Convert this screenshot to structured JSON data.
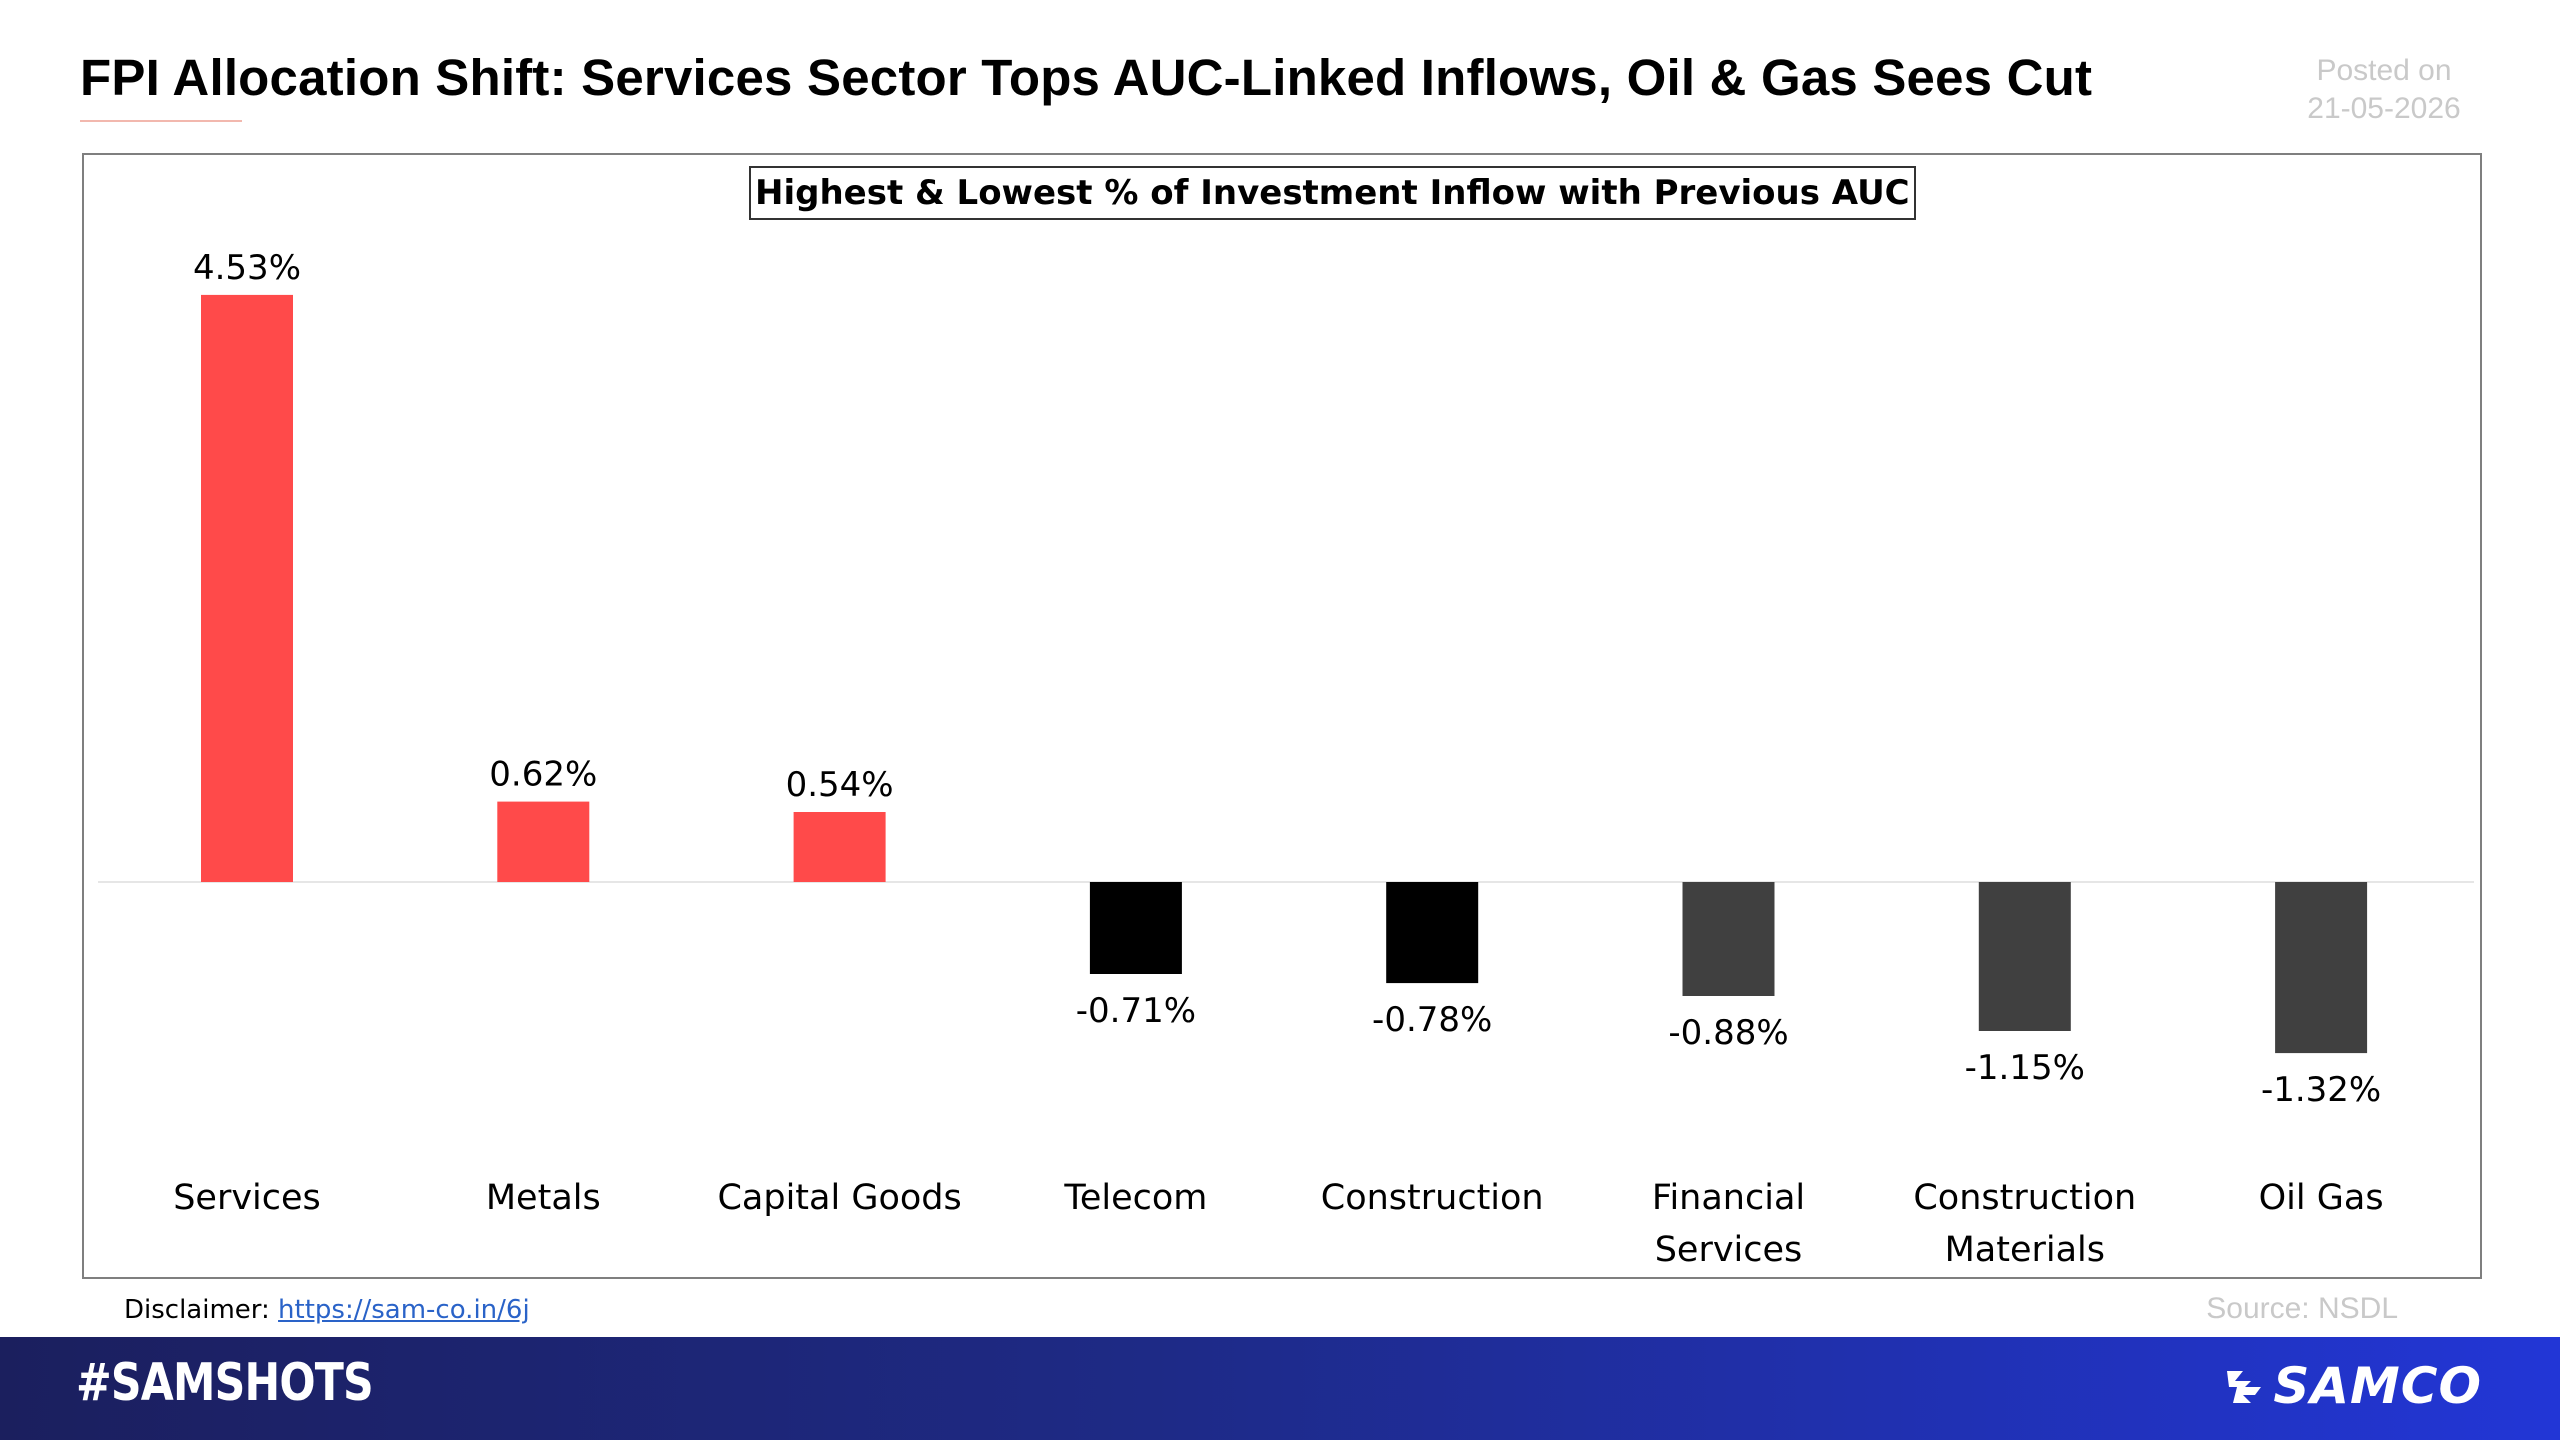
{
  "header": {
    "title": "FPI Allocation Shift: Services Sector Tops AUC-Linked Inflows, Oil & Gas Sees Cut",
    "posted_label": "Posted on",
    "posted_date": "21-05-2026"
  },
  "chart_data": {
    "type": "bar",
    "title": "Highest & Lowest % of Investment Inflow with Previous AUC",
    "categories": [
      "Services",
      "Metals",
      "Capital Goods",
      "Telecom",
      "Construction",
      "Financial Services",
      "Construction Materials",
      "Oil Gas"
    ],
    "category_lines": [
      [
        "Services"
      ],
      [
        "Metals"
      ],
      [
        "Capital Goods"
      ],
      [
        "Telecom"
      ],
      [
        "Construction"
      ],
      [
        "Financial",
        "Services"
      ],
      [
        "Construction",
        "Materials"
      ],
      [
        "Oil Gas"
      ]
    ],
    "values": [
      4.53,
      0.62,
      0.54,
      -0.71,
      -0.78,
      -0.88,
      -1.15,
      -1.32
    ],
    "data_labels": [
      "4.53%",
      "0.62%",
      "0.54%",
      "-0.71%",
      "-0.78%",
      "-0.88%",
      "-1.15%",
      "-1.32%"
    ],
    "bar_colors": [
      "#ff4a4a",
      "#ff4a4a",
      "#ff4a4a",
      "#000000",
      "#000000",
      "#404040",
      "#404040",
      "#404040"
    ],
    "ylim": [
      -1.32,
      4.53
    ],
    "xlabel": "",
    "ylabel": "",
    "grid": false,
    "legend": "none"
  },
  "footer": {
    "disclaimer_label": "Disclaimer:",
    "disclaimer_link": "https://sam-co.in/6j",
    "source": "Source: NSDL",
    "hashtag": "#SAMSHOTS",
    "brand": "SAMCO",
    "brand_icon": "samco-logo-icon"
  },
  "colors": {
    "positive_bar": "#ff4a4a",
    "negative_bar_dark": "#000000",
    "negative_bar_gray": "#404040",
    "footer_band_start": "#1b1f5e",
    "footer_band_end": "#2236d6"
  }
}
